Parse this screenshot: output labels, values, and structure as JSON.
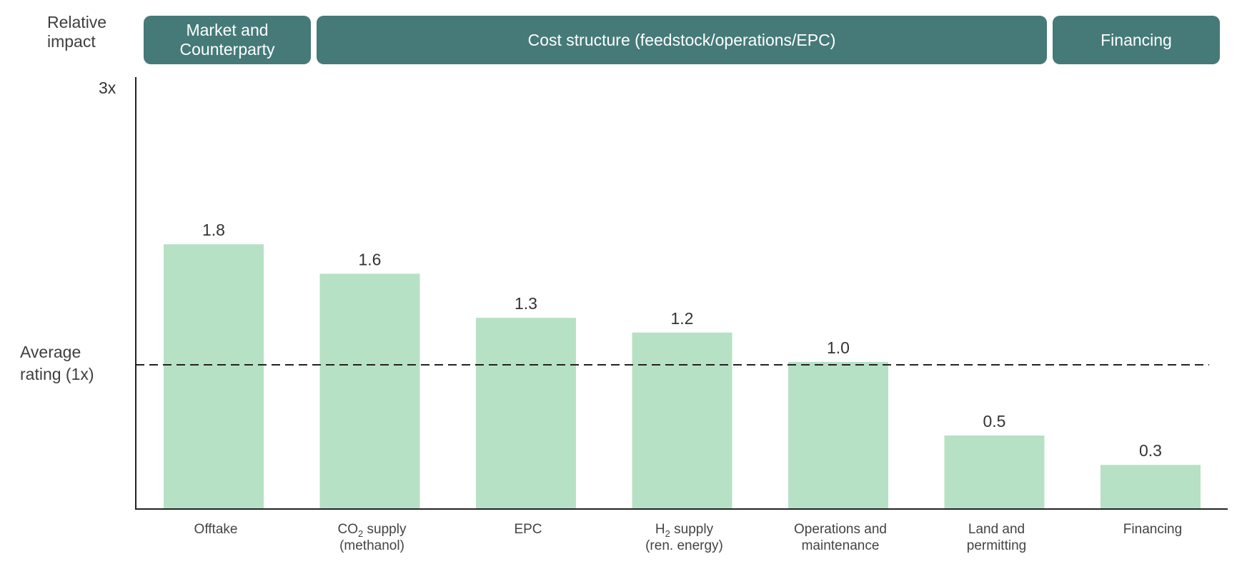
{
  "chart_data": {
    "type": "bar",
    "ylabel": "Relative\nimpact",
    "y_max_label": "3x",
    "ylim": [
      0,
      3
    ],
    "reference_line": {
      "value": 1.0,
      "label": "Average\nrating (1x)",
      "style": "dashed"
    },
    "groups": [
      {
        "label": "Market and\nCounterparty",
        "categories": [
          "Offtake"
        ]
      },
      {
        "label": "Cost structure (feedstock/operations/EPC)",
        "categories": [
          "CO2 supply (methanol)",
          "EPC",
          "H2 supply (ren. energy)",
          "Operations and maintenance",
          "Land and permitting"
        ]
      },
      {
        "label": "Financing",
        "categories": [
          "Financing"
        ]
      }
    ],
    "categories": [
      {
        "line1": "Offtake",
        "line2": ""
      },
      {
        "line1": "CO",
        "sub": "2",
        "line1_after": " supply",
        "line2": "(methanol)"
      },
      {
        "line1": "EPC",
        "line2": ""
      },
      {
        "line1": "H",
        "sub": "2",
        "line1_after": " supply",
        "line2": "(ren. energy)"
      },
      {
        "line1": "Operations and",
        "line2": "maintenance"
      },
      {
        "line1": "Land and",
        "line2": "permitting"
      },
      {
        "line1": "Financing",
        "line2": ""
      }
    ],
    "values": [
      1.8,
      1.6,
      1.3,
      1.2,
      1.0,
      0.5,
      0.3
    ],
    "value_labels": [
      "1.8",
      "1.6",
      "1.3",
      "1.2",
      "1.0",
      "0.5",
      "0.3"
    ],
    "colors": {
      "bar": "#b7e1c4",
      "header": "#457a78",
      "axis": "#222222"
    },
    "legend": "none",
    "grid": false
  }
}
